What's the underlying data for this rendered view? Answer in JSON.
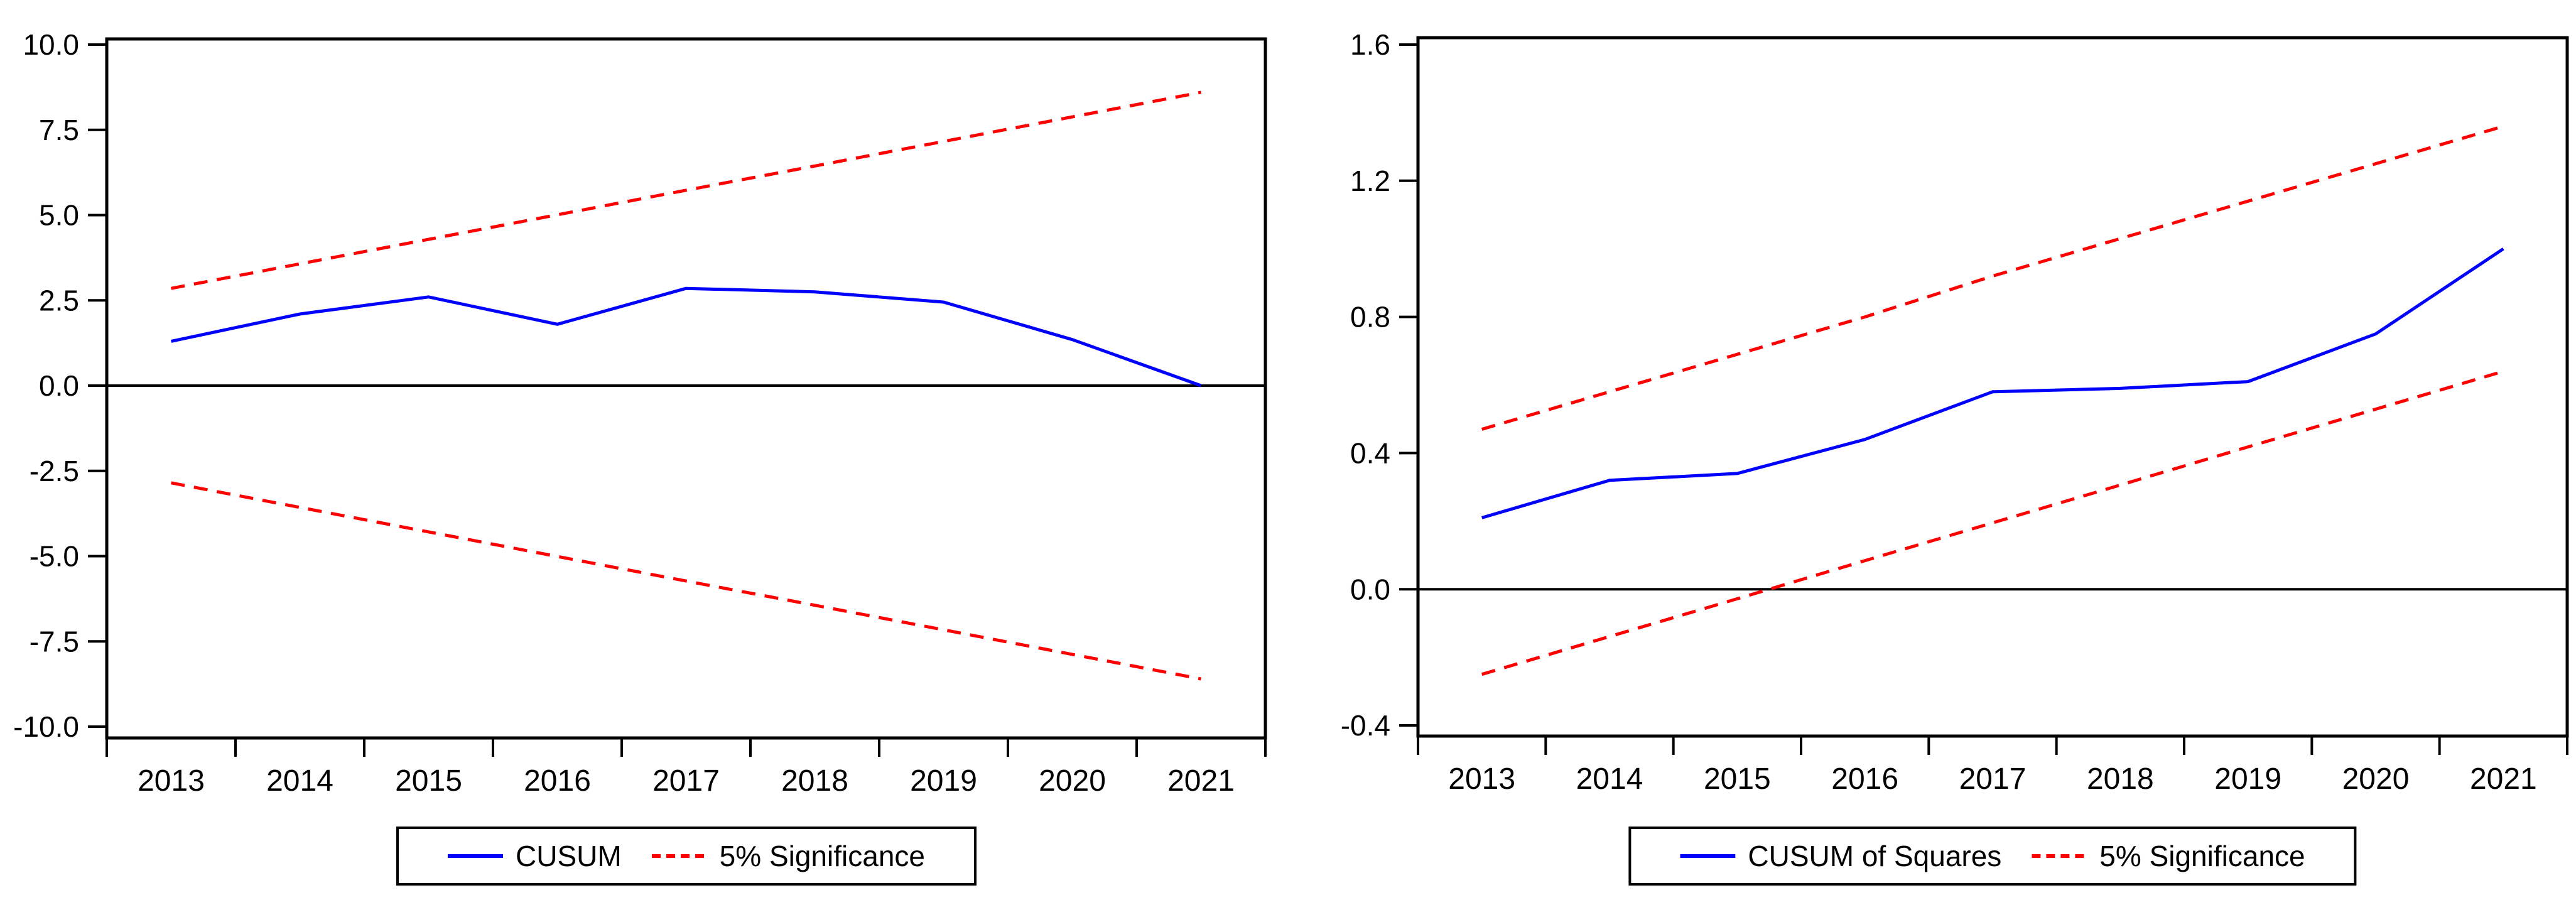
{
  "page": {
    "background": "#ffffff",
    "text_color": "#000000",
    "frame_color": "#000000"
  },
  "chart_data": [
    {
      "type": "line",
      "title": "",
      "xlabel": "",
      "ylabel": "",
      "x_categories": [
        "2013",
        "2014",
        "2015",
        "2016",
        "2017",
        "2018",
        "2019",
        "2020",
        "2021"
      ],
      "ylim": [
        -10,
        10
      ],
      "ytick_labels": [
        "10.0",
        "7.5",
        "5.0",
        "2.5",
        "0.0",
        "-2.5",
        "-5.0",
        "-7.5",
        "-10.0"
      ],
      "grid": false,
      "zero_line": true,
      "frame": "box",
      "legend_position": "bottom-center",
      "series": [
        {
          "name": "CUSUM",
          "slug": "cusum-line",
          "color": "#0000ff",
          "style": "solid",
          "values": [
            1.3,
            2.1,
            2.6,
            1.8,
            2.85,
            2.75,
            2.45,
            1.35,
            0.0
          ]
        },
        {
          "name": "5% Significance (upper)",
          "slug": "significance-upper-line",
          "color": "#ff0000",
          "style": "dashed",
          "values": [
            2.85,
            3.57,
            4.29,
            5.01,
            5.73,
            6.44,
            7.16,
            7.88,
            8.6
          ]
        },
        {
          "name": "5% Significance (lower)",
          "slug": "significance-lower-line",
          "color": "#ff0000",
          "style": "dashed",
          "values": [
            -2.85,
            -3.57,
            -4.29,
            -5.01,
            -5.73,
            -6.44,
            -7.16,
            -7.88,
            -8.6
          ]
        }
      ],
      "legend": [
        {
          "label": "CUSUM",
          "color": "#0000ff",
          "style": "solid"
        },
        {
          "label": "5% Significance",
          "color": "#ff0000",
          "style": "dashed"
        }
      ]
    },
    {
      "type": "line",
      "title": "",
      "xlabel": "",
      "ylabel": "",
      "x_categories": [
        "2013",
        "2014",
        "2015",
        "2016",
        "2017",
        "2018",
        "2019",
        "2020",
        "2021"
      ],
      "ylim": [
        -0.4,
        1.6
      ],
      "ytick_labels": [
        "1.6",
        "1.2",
        "0.8",
        "0.4",
        "0.0",
        "-0.4"
      ],
      "grid": false,
      "zero_line": true,
      "frame": "box",
      "legend_position": "bottom-center",
      "series": [
        {
          "name": "CUSUM of Squares",
          "slug": "cusum-of-squares-line",
          "color": "#0000ff",
          "style": "solid",
          "values": [
            0.21,
            0.32,
            0.34,
            0.44,
            0.58,
            0.59,
            0.61,
            0.75,
            1.0
          ]
        },
        {
          "name": "5% Significance (upper)",
          "slug": "significance-upper-line",
          "color": "#ff0000",
          "style": "dashed",
          "values": [
            0.47,
            0.58,
            0.69,
            0.8,
            0.92,
            1.03,
            1.14,
            1.25,
            1.36
          ]
        },
        {
          "name": "5% Significance (lower)",
          "slug": "significance-lower-line",
          "color": "#ff0000",
          "style": "dashed",
          "values": [
            -0.25,
            -0.139,
            -0.028,
            0.084,
            0.195,
            0.306,
            0.418,
            0.529,
            0.64
          ]
        }
      ],
      "legend": [
        {
          "label": "CUSUM of Squares",
          "color": "#0000ff",
          "style": "solid"
        },
        {
          "label": "5% Significance",
          "color": "#ff0000",
          "style": "dashed"
        }
      ]
    }
  ]
}
